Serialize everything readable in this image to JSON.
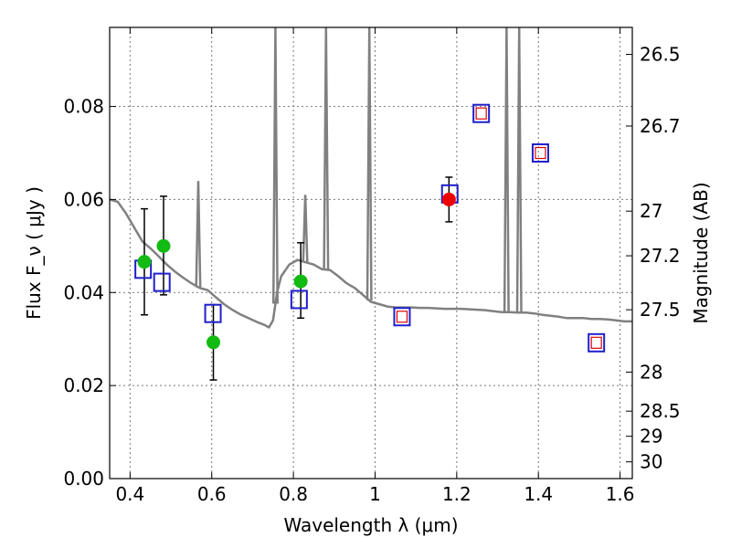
{
  "chart_data": {
    "type": "scatter",
    "xlabel": "Wavelength  λ (μm)",
    "ylabel": "Flux  F_ν  ( μJy )",
    "ylabel_right": "Magnitude (AB)",
    "xlim": [
      0.35,
      1.63
    ],
    "ylim": [
      0.0,
      0.097
    ],
    "grid": true,
    "x_ticks": [
      0.4,
      0.6,
      0.8,
      1.0,
      1.2,
      1.4,
      1.6
    ],
    "x_tick_labels": [
      "0.4",
      "0.6",
      "0.8",
      "1",
      "1.2",
      "1.4",
      "1.6"
    ],
    "y_ticks": [
      0.0,
      0.02,
      0.04,
      0.06,
      0.08
    ],
    "y_tick_labels": [
      "0.00",
      "0.02",
      "0.04",
      "0.06",
      "0.08"
    ],
    "right_ticks": [
      {
        "label": "26.5",
        "flux": 0.0912
      },
      {
        "label": "26.7",
        "flux": 0.0758
      },
      {
        "label": "27",
        "flux": 0.0575
      },
      {
        "label": "27.2",
        "flux": 0.0479
      },
      {
        "label": "27.5",
        "flux": 0.0363
      },
      {
        "label": "28",
        "flux": 0.0229
      },
      {
        "label": "28.5",
        "flux": 0.0145
      },
      {
        "label": "29",
        "flux": 0.0091
      },
      {
        "label": "30",
        "flux": 0.0036
      }
    ],
    "model_spectrum": {
      "color": "#808080",
      "points": [
        [
          0.35,
          0.06
        ],
        [
          0.37,
          0.0595
        ],
        [
          0.39,
          0.057
        ],
        [
          0.41,
          0.054
        ],
        [
          0.43,
          0.051
        ],
        [
          0.45,
          0.0495
        ],
        [
          0.47,
          0.0478
        ],
        [
          0.49,
          0.046
        ],
        [
          0.51,
          0.0445
        ],
        [
          0.53,
          0.0432
        ],
        [
          0.55,
          0.042
        ],
        [
          0.57,
          0.041
        ],
        [
          0.59,
          0.0405
        ],
        [
          0.61,
          0.039
        ],
        [
          0.63,
          0.0375
        ],
        [
          0.65,
          0.0363
        ],
        [
          0.67,
          0.0353
        ],
        [
          0.69,
          0.0345
        ],
        [
          0.71,
          0.0337
        ],
        [
          0.73,
          0.033
        ],
        [
          0.74,
          0.0325
        ],
        [
          0.75,
          0.034
        ],
        [
          0.76,
          0.04
        ],
        [
          0.77,
          0.0435
        ],
        [
          0.79,
          0.046
        ],
        [
          0.81,
          0.047
        ],
        [
          0.83,
          0.0465
        ],
        [
          0.85,
          0.046
        ],
        [
          0.87,
          0.045
        ],
        [
          0.89,
          0.0448
        ],
        [
          0.91,
          0.0435
        ],
        [
          0.93,
          0.042
        ],
        [
          0.95,
          0.041
        ],
        [
          0.97,
          0.0395
        ],
        [
          0.99,
          0.038
        ],
        [
          1.01,
          0.0375
        ],
        [
          1.03,
          0.037
        ],
        [
          1.05,
          0.0368
        ],
        [
          1.07,
          0.0368
        ],
        [
          1.09,
          0.0368
        ],
        [
          1.11,
          0.0367
        ],
        [
          1.13,
          0.0367
        ],
        [
          1.15,
          0.0366
        ],
        [
          1.17,
          0.0365
        ],
        [
          1.19,
          0.0365
        ],
        [
          1.21,
          0.0365
        ],
        [
          1.23,
          0.0364
        ],
        [
          1.25,
          0.0363
        ],
        [
          1.27,
          0.0362
        ],
        [
          1.29,
          0.036
        ],
        [
          1.31,
          0.0358
        ],
        [
          1.33,
          0.0358
        ],
        [
          1.35,
          0.0357
        ],
        [
          1.37,
          0.0357
        ],
        [
          1.39,
          0.0355
        ],
        [
          1.41,
          0.0352
        ],
        [
          1.43,
          0.035
        ],
        [
          1.45,
          0.0348
        ],
        [
          1.47,
          0.0345
        ],
        [
          1.49,
          0.0345
        ],
        [
          1.51,
          0.0345
        ],
        [
          1.53,
          0.0343
        ],
        [
          1.55,
          0.0343
        ],
        [
          1.57,
          0.0342
        ],
        [
          1.59,
          0.034
        ],
        [
          1.61,
          0.0338
        ],
        [
          1.63,
          0.0338
        ]
      ],
      "lines": [
        {
          "x": 0.567,
          "peak": 0.064
        },
        {
          "x": 0.756,
          "peak": 0.1
        },
        {
          "x": 0.829,
          "peak": 0.061
        },
        {
          "x": 0.88,
          "peak": 0.1
        },
        {
          "x": 0.986,
          "peak": 0.1
        },
        {
          "x": 1.322,
          "peak": 0.1
        },
        {
          "x": 1.353,
          "peak": 0.1
        }
      ]
    },
    "series": [
      {
        "marker": "open-square",
        "color": "#1f1fcc",
        "inner_color": "#dd0000",
        "points": [
          {
            "x": 0.432,
            "y": 0.045,
            "inner": false
          },
          {
            "x": 0.478,
            "y": 0.0422,
            "inner": false
          },
          {
            "x": 0.603,
            "y": 0.0355,
            "inner": false
          },
          {
            "x": 0.814,
            "y": 0.0385,
            "inner": false
          },
          {
            "x": 1.066,
            "y": 0.0348,
            "inner": true
          },
          {
            "x": 1.183,
            "y": 0.0612,
            "inner": false
          },
          {
            "x": 1.26,
            "y": 0.0785,
            "inner": true
          },
          {
            "x": 1.405,
            "y": 0.07,
            "inner": true
          },
          {
            "x": 1.542,
            "y": 0.0292,
            "inner": true
          }
        ]
      },
      {
        "marker": "filled-circle",
        "color": "#11bb11",
        "points": [
          {
            "x": 0.435,
            "y": 0.0466,
            "err": [
              0.0352,
              0.058
            ]
          },
          {
            "x": 0.482,
            "y": 0.05,
            "err": [
              0.0395,
              0.0607
            ]
          },
          {
            "x": 0.604,
            "y": 0.0293,
            "err": [
              0.0212,
              0.0374
            ]
          },
          {
            "x": 0.818,
            "y": 0.0424,
            "err": [
              0.0345,
              0.0507
            ]
          }
        ]
      },
      {
        "marker": "filled-circle",
        "color": "#ee0000",
        "points": [
          {
            "x": 1.181,
            "y": 0.06,
            "err": [
              0.0552,
              0.0648
            ]
          }
        ]
      }
    ]
  }
}
